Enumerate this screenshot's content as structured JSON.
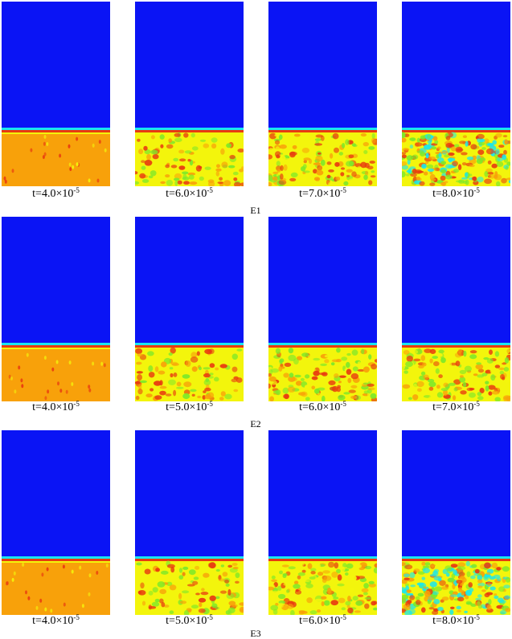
{
  "colors": {
    "fluid": "#0a14f5",
    "interface_cyan": "#19e6ee",
    "interface_red": "#e83a10",
    "solid_orange": "#f8a10a",
    "solid_yellow": "#f3f50c",
    "solid_green": "#7de82a"
  },
  "rows": [
    {
      "label": "E1",
      "panels": [
        {
          "time": "t=4.0×10",
          "exp": "-5",
          "state": "initial"
        },
        {
          "time": "t=6.0×10",
          "exp": "-5",
          "state": "early"
        },
        {
          "time": "t=7.0×10",
          "exp": "-5",
          "state": "mid"
        },
        {
          "time": "t=8.0×10",
          "exp": "-5",
          "state": "late"
        }
      ]
    },
    {
      "label": "E2",
      "panels": [
        {
          "time": "t=4.0×10",
          "exp": "-5",
          "state": "initial"
        },
        {
          "time": "t=5.0×10",
          "exp": "-5",
          "state": "early"
        },
        {
          "time": "t=6.0×10",
          "exp": "-5",
          "state": "mid"
        },
        {
          "time": "t=7.0×10",
          "exp": "-5",
          "state": "mid"
        }
      ]
    },
    {
      "label": "E3",
      "panels": [
        {
          "time": "t=4.0×10",
          "exp": "-5",
          "state": "initial"
        },
        {
          "time": "t=5.0×10",
          "exp": "-5",
          "state": "early"
        },
        {
          "time": "t=6.0×10",
          "exp": "-5",
          "state": "mid"
        },
        {
          "time": "t=8.0×10",
          "exp": "-5",
          "state": "late"
        }
      ]
    }
  ]
}
